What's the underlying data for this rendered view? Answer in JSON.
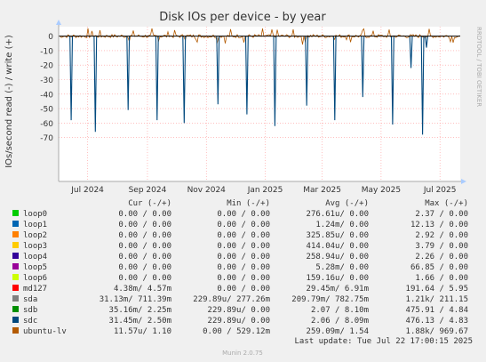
{
  "chart_data": {
    "type": "line",
    "title": "Disk IOs per device - by year",
    "ylabel": "IOs/second read (-) / write (+)",
    "side_label": "RRDTOOL / TOBI OETIKER",
    "ylim": [
      -70,
      5
    ],
    "yticks": [
      0,
      -10,
      -20,
      -30,
      -40,
      -50,
      -60,
      -70
    ],
    "x_range": [
      "2024-06-01",
      "2025-07-22"
    ],
    "xticks": [
      {
        "date": "2024-07-01",
        "label": "Jul 2024"
      },
      {
        "date": "2024-09-01",
        "label": "Sep 2024"
      },
      {
        "date": "2024-11-01",
        "label": "Nov 2024"
      },
      {
        "date": "2025-01-01",
        "label": "Jan 2025"
      },
      {
        "date": "2025-03-01",
        "label": "Mar 2025"
      },
      {
        "date": "2025-05-01",
        "label": "May 2025"
      },
      {
        "date": "2025-07-01",
        "label": "Jul 2025"
      }
    ],
    "read_dips": [
      {
        "date": "2024-06-14",
        "value": -58
      },
      {
        "date": "2024-07-09",
        "value": -66
      },
      {
        "date": "2024-08-12",
        "value": -51
      },
      {
        "date": "2024-09-11",
        "value": -58
      },
      {
        "date": "2024-10-09",
        "value": -60
      },
      {
        "date": "2024-11-13",
        "value": -47
      },
      {
        "date": "2024-12-13",
        "value": -54
      },
      {
        "date": "2025-01-11",
        "value": -62
      },
      {
        "date": "2025-02-13",
        "value": -48
      },
      {
        "date": "2025-03-14",
        "value": -58
      },
      {
        "date": "2025-04-12",
        "value": -42
      },
      {
        "date": "2025-05-13",
        "value": -61
      },
      {
        "date": "2025-06-01",
        "value": -22
      },
      {
        "date": "2025-06-13",
        "value": -68
      },
      {
        "date": "2025-06-17",
        "value": -8
      }
    ],
    "legend_header": {
      "cur": "Cur (-/+)",
      "min": "Min (-/+)",
      "avg": "Avg (-/+)",
      "max": "Max (-/+)"
    },
    "series": [
      {
        "name": "loop0",
        "color": "#00cc00",
        "cur": "0.00 /   0.00",
        "min": "0.00 /   0.00",
        "avg": "276.61u/   0.00",
        "max": "2.37 /   0.00"
      },
      {
        "name": "loop1",
        "color": "#0066b3",
        "cur": "0.00 /   0.00",
        "min": "0.00 /   0.00",
        "avg": "1.24m/   0.00",
        "max": "12.13 /   0.00"
      },
      {
        "name": "loop2",
        "color": "#ff8000",
        "cur": "0.00 /   0.00",
        "min": "0.00 /   0.00",
        "avg": "325.85u/   0.00",
        "max": "2.92 /   0.00"
      },
      {
        "name": "loop3",
        "color": "#ffcc00",
        "cur": "0.00 /   0.00",
        "min": "0.00 /   0.00",
        "avg": "414.04u/   0.00",
        "max": "3.79 /   0.00"
      },
      {
        "name": "loop4",
        "color": "#330099",
        "cur": "0.00 /   0.00",
        "min": "0.00 /   0.00",
        "avg": "258.94u/   0.00",
        "max": "2.26 /   0.00"
      },
      {
        "name": "loop5",
        "color": "#990099",
        "cur": "0.00 /   0.00",
        "min": "0.00 /   0.00",
        "avg": "5.28m/   0.00",
        "max": "66.85 /   0.00"
      },
      {
        "name": "loop6",
        "color": "#ccff00",
        "cur": "0.00 /   0.00",
        "min": "0.00 /   0.00",
        "avg": "159.16u/   0.00",
        "max": "1.66 /   0.00"
      },
      {
        "name": "md127",
        "color": "#ff0000",
        "cur": "4.38m/   4.57m",
        "min": "0.00 /   0.00",
        "avg": "29.45m/   6.91m",
        "max": "191.64 /   5.95"
      },
      {
        "name": "sda",
        "color": "#808080",
        "cur": "31.13m/ 711.39m",
        "min": "229.89u/ 277.26m",
        "avg": "209.79m/ 782.75m",
        "max": "1.21k/ 211.15"
      },
      {
        "name": "sdb",
        "color": "#008f00",
        "cur": "35.16m/   2.25m",
        "min": "229.89u/   0.00",
        "avg": "2.07 /   8.10m",
        "max": "475.91 /   4.84"
      },
      {
        "name": "sdc",
        "color": "#00487d",
        "cur": "31.45m/   2.50m",
        "min": "229.89u/   0.00",
        "avg": "2.06 /   8.09m",
        "max": "476.13 /   4.83"
      },
      {
        "name": "ubuntu-lv",
        "color": "#b35a00",
        "cur": "11.57u/   1.10",
        "min": "0.00 / 529.12m",
        "avg": "259.09m/   1.54",
        "max": "1.88k/ 969.67"
      }
    ],
    "last_update": "Last update: Tue Jul 22 17:00:15 2025",
    "footer": "Munin 2.0.75"
  }
}
